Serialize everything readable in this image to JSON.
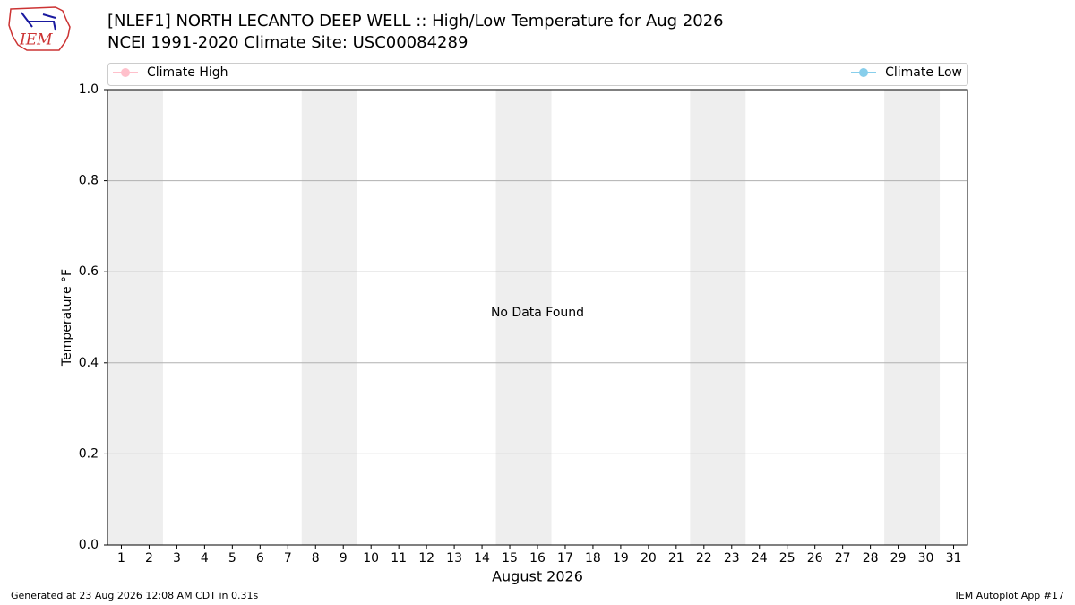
{
  "chart_data": {
    "type": "line",
    "title": "[NLEF1] NORTH LECANTO DEEP WELL :: High/Low Temperature for Aug 2026",
    "subtitle": "NCEI 1991-2020 Climate Site: USC00084289",
    "logo_text": "IEM",
    "categories": [
      "1",
      "2",
      "3",
      "4",
      "5",
      "6",
      "7",
      "8",
      "9",
      "10",
      "11",
      "12",
      "13",
      "14",
      "15",
      "16",
      "17",
      "18",
      "19",
      "20",
      "21",
      "22",
      "23",
      "24",
      "25",
      "26",
      "27",
      "28",
      "29",
      "30",
      "31"
    ],
    "xlabel": "August 2026",
    "ylabel": "Temperature °F",
    "series": [
      {
        "name": "Climate High",
        "color": "pink",
        "values": [
          null,
          null,
          null,
          null,
          null,
          null,
          null,
          null,
          null,
          null,
          null,
          null,
          null,
          null,
          null,
          null,
          null,
          null,
          null,
          null,
          null,
          null,
          null,
          null,
          null,
          null,
          null,
          null,
          null,
          null,
          null
        ]
      },
      {
        "name": "Climate Low",
        "color": "skyblue",
        "values": [
          null,
          null,
          null,
          null,
          null,
          null,
          null,
          null,
          null,
          null,
          null,
          null,
          null,
          null,
          null,
          null,
          null,
          null,
          null,
          null,
          null,
          null,
          null,
          null,
          null,
          null,
          null,
          null,
          null,
          null,
          null
        ]
      }
    ],
    "ylim": [
      0,
      1
    ],
    "yticks": [
      {
        "value": 0,
        "label": "0.0"
      },
      0.2,
      0.4,
      0.6,
      0.8,
      {
        "value": 1,
        "label": "1.0"
      }
    ],
    "grid": true,
    "annotation": "No Data Found",
    "footer_left": "Generated at 23 Aug 2026 12:08 AM CDT in 0.31s",
    "footer_right": "IEM Autoplot App #17"
  }
}
